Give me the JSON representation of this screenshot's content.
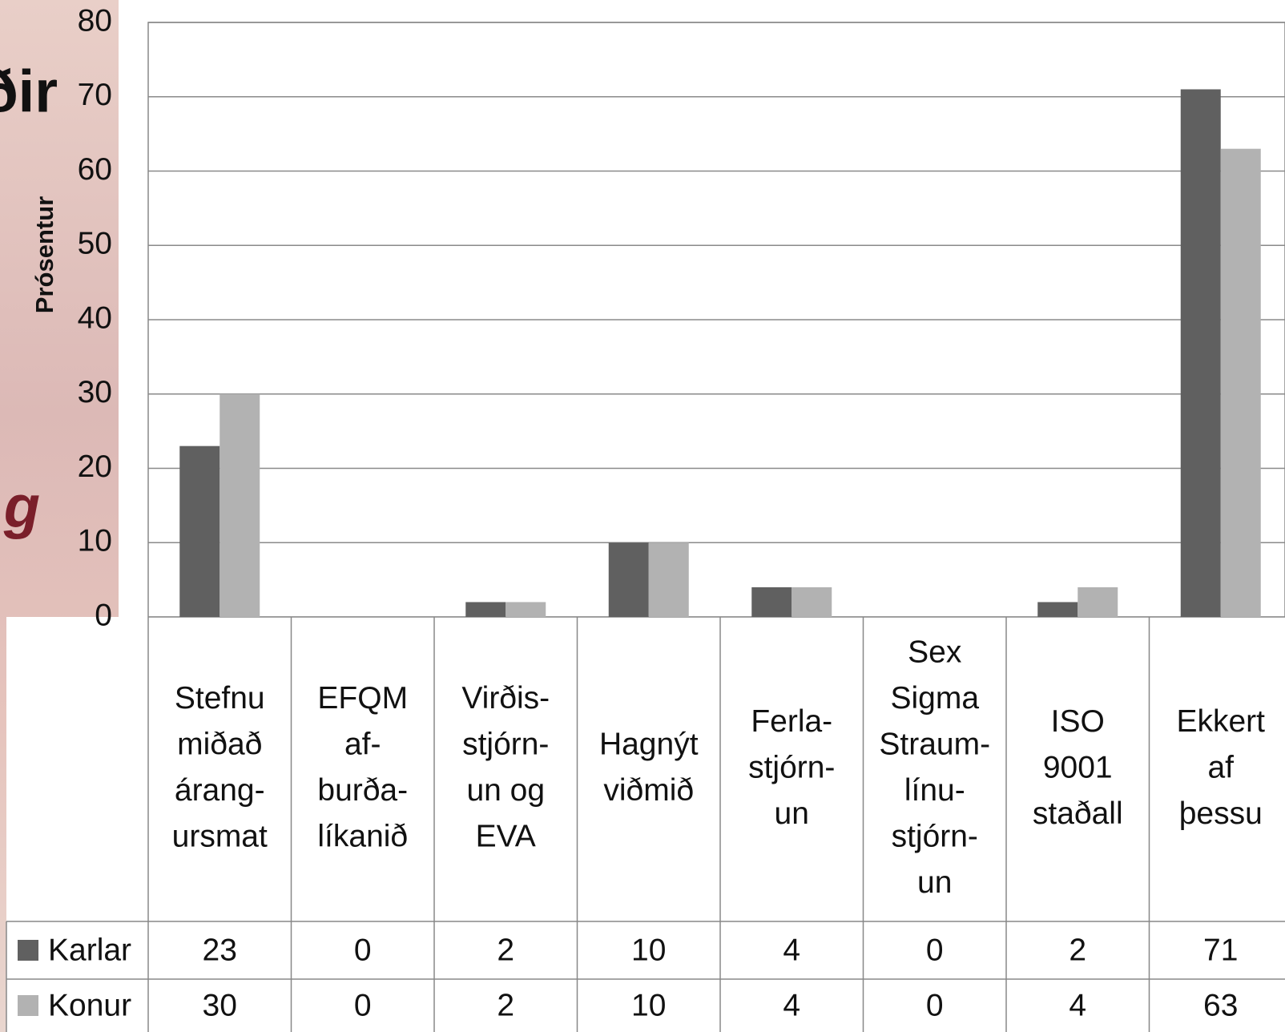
{
  "chart_data": {
    "type": "bar",
    "y_axis_label": "Prósentur",
    "slide_fragments": [
      "ðir",
      "g"
    ],
    "categories": [
      [
        "Stefnu",
        "miðað",
        "árang-",
        "ursmat"
      ],
      [
        "EFQM",
        "af-",
        "burða-",
        "líkanið"
      ],
      [
        "Virðis-",
        "stjórn-",
        "un og",
        "EVA"
      ],
      [
        "Hagnýt",
        "viðmið"
      ],
      [
        "Ferla-",
        "stjórn-",
        "un"
      ],
      [
        "Sex",
        "Sigma",
        "Straum-",
        "línu-",
        "stjórn-",
        "un"
      ],
      [
        "ISO",
        "9001",
        "staðall"
      ],
      [
        "Ekkert",
        "af",
        "þessu"
      ]
    ],
    "series": [
      {
        "name": "Karlar",
        "color": "#606060",
        "values": [
          23,
          0,
          2,
          10,
          4,
          0,
          2,
          71
        ]
      },
      {
        "name": "Konur",
        "color": "#b2b2b2",
        "values": [
          30,
          0,
          2,
          10,
          4,
          0,
          4,
          63
        ]
      }
    ],
    "ylim": [
      0,
      80
    ],
    "yticks": [
      0,
      10,
      20,
      30,
      40,
      50,
      60,
      70,
      80
    ],
    "grid": true
  }
}
